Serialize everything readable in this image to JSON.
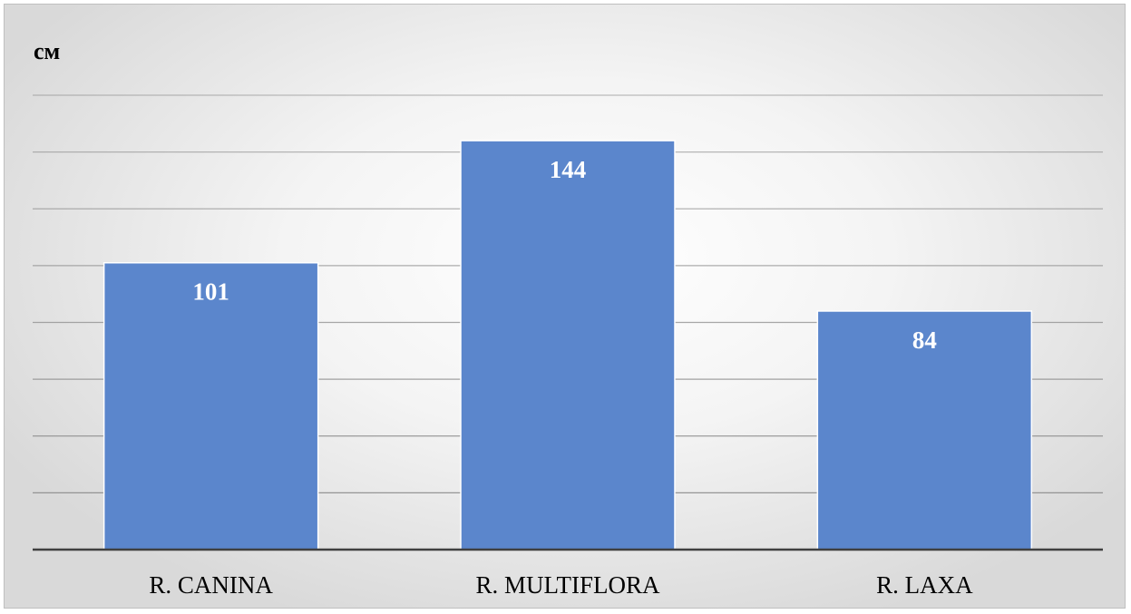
{
  "chart_data": {
    "type": "bar",
    "ylabel": "см",
    "categories": [
      "R. CANINA",
      "R. MULTIFLORA",
      "R. LAXA"
    ],
    "series": [
      {
        "values": [
          101,
          144,
          84
        ]
      }
    ],
    "ylim": [
      0,
      160
    ],
    "ytick_step": 20,
    "grid": true,
    "legend": "none",
    "data_labels": "inside-end",
    "colors": {
      "bar": "#5b86cc",
      "bar_border": "#ffffff",
      "data_label": "#ffffff",
      "gridline": "#8c8c8c",
      "axis": "#404040"
    }
  }
}
